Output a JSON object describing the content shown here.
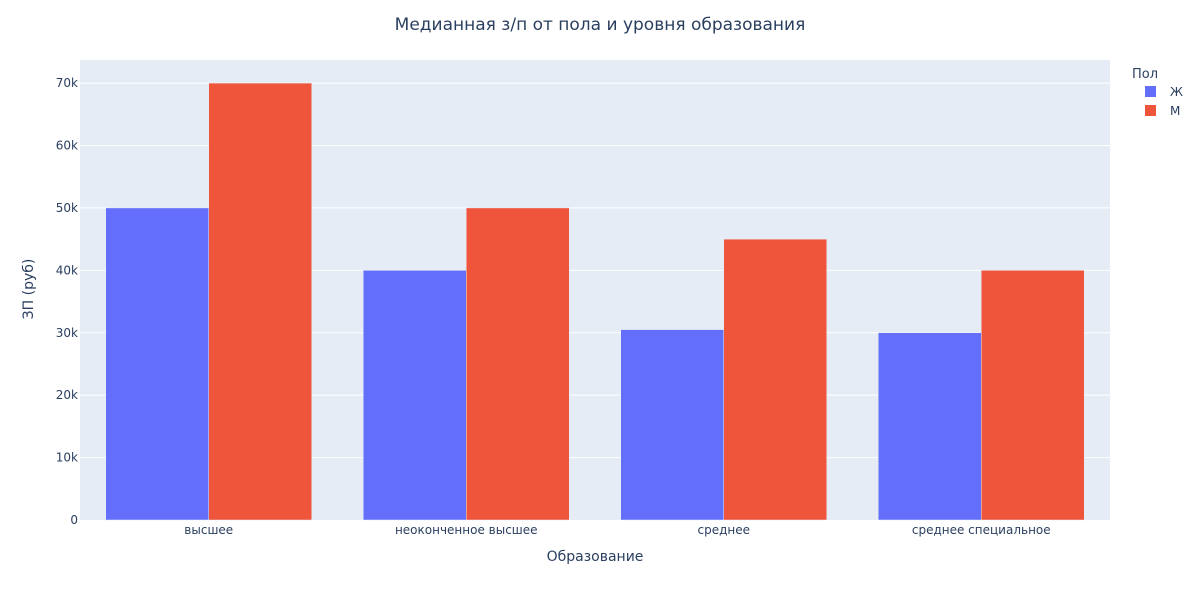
{
  "chart_data": {
    "type": "bar",
    "title": "Медианная з/п от пола и уровня образования",
    "xlabel": "Образование",
    "ylabel": "ЗП (руб)",
    "categories": [
      "высшее",
      "неоконченное высшее",
      "среднее",
      "среднее специальное"
    ],
    "series": [
      {
        "name": "Ж",
        "color": "#636efa",
        "values": [
          50000,
          40000,
          30500,
          30000
        ]
      },
      {
        "name": "М",
        "color": "#ef553b",
        "values": [
          70000,
          50000,
          45000,
          40000
        ]
      }
    ],
    "ylim": [
      0,
      73700
    ],
    "yticks": [
      0,
      10000,
      20000,
      30000,
      40000,
      50000,
      60000,
      70000
    ],
    "ytick_labels": [
      "0",
      "10k",
      "20k",
      "30k",
      "40k",
      "50k",
      "60k",
      "70k"
    ],
    "legend_title": "Пол",
    "legend_position": "top-right",
    "grid": true,
    "plot_bgcolor": "#e5ecf6",
    "gridcolor": "#ffffff"
  }
}
